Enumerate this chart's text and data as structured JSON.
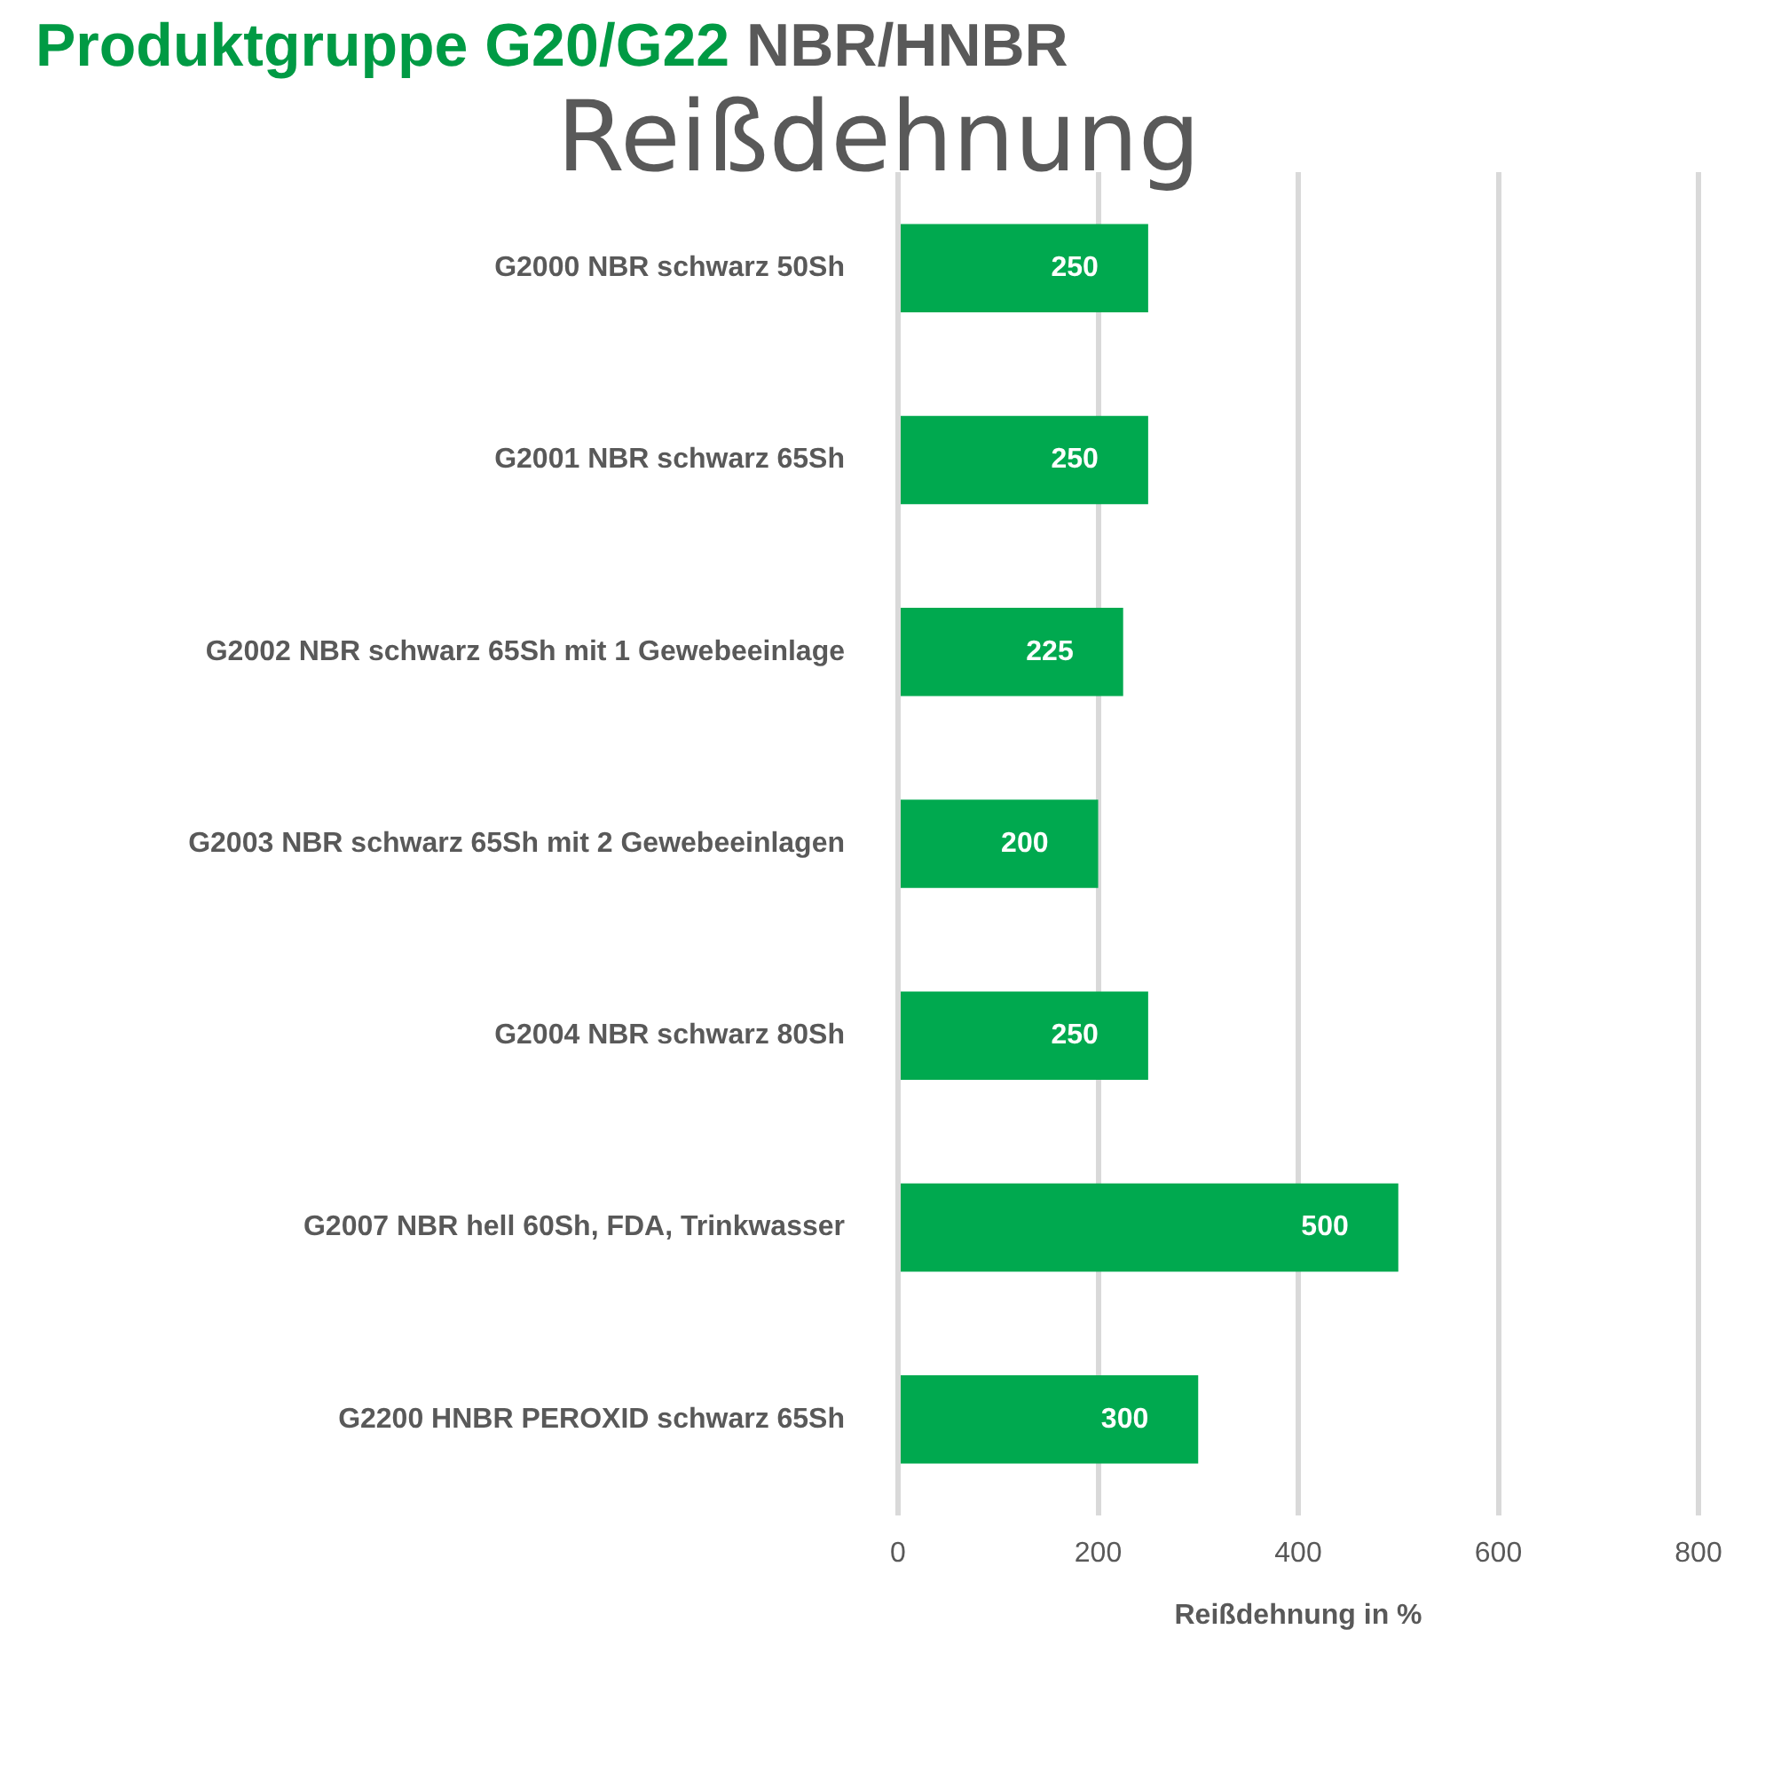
{
  "chart_data": {
    "type": "bar",
    "orientation": "horizontal",
    "title": "Produktgruppe G20/G22 NBR/HNBR",
    "subtitle": "Reißdehnung",
    "xlabel": "Reißdehnung in %",
    "categories": [
      "G2000 NBR schwarz 50Sh",
      "G2001 NBR schwarz 65Sh",
      "G2002 NBR schwarz 65Sh mit 1 Gewebeeinlage",
      "G2003 NBR schwarz 65Sh mit 2 Gewebeeinlagen",
      "G2004 NBR schwarz 80Sh",
      "G2007 NBR hell 60Sh, FDA, Trinkwasser",
      "G2200 HNBR PEROXID schwarz 65Sh"
    ],
    "values": [
      250,
      250,
      225,
      200,
      250,
      500,
      300
    ],
    "color": "#00a94f",
    "xlim": [
      0,
      800
    ],
    "xticks": [
      0,
      200,
      400,
      600,
      800
    ],
    "grid": "x",
    "data_labels": true
  }
}
